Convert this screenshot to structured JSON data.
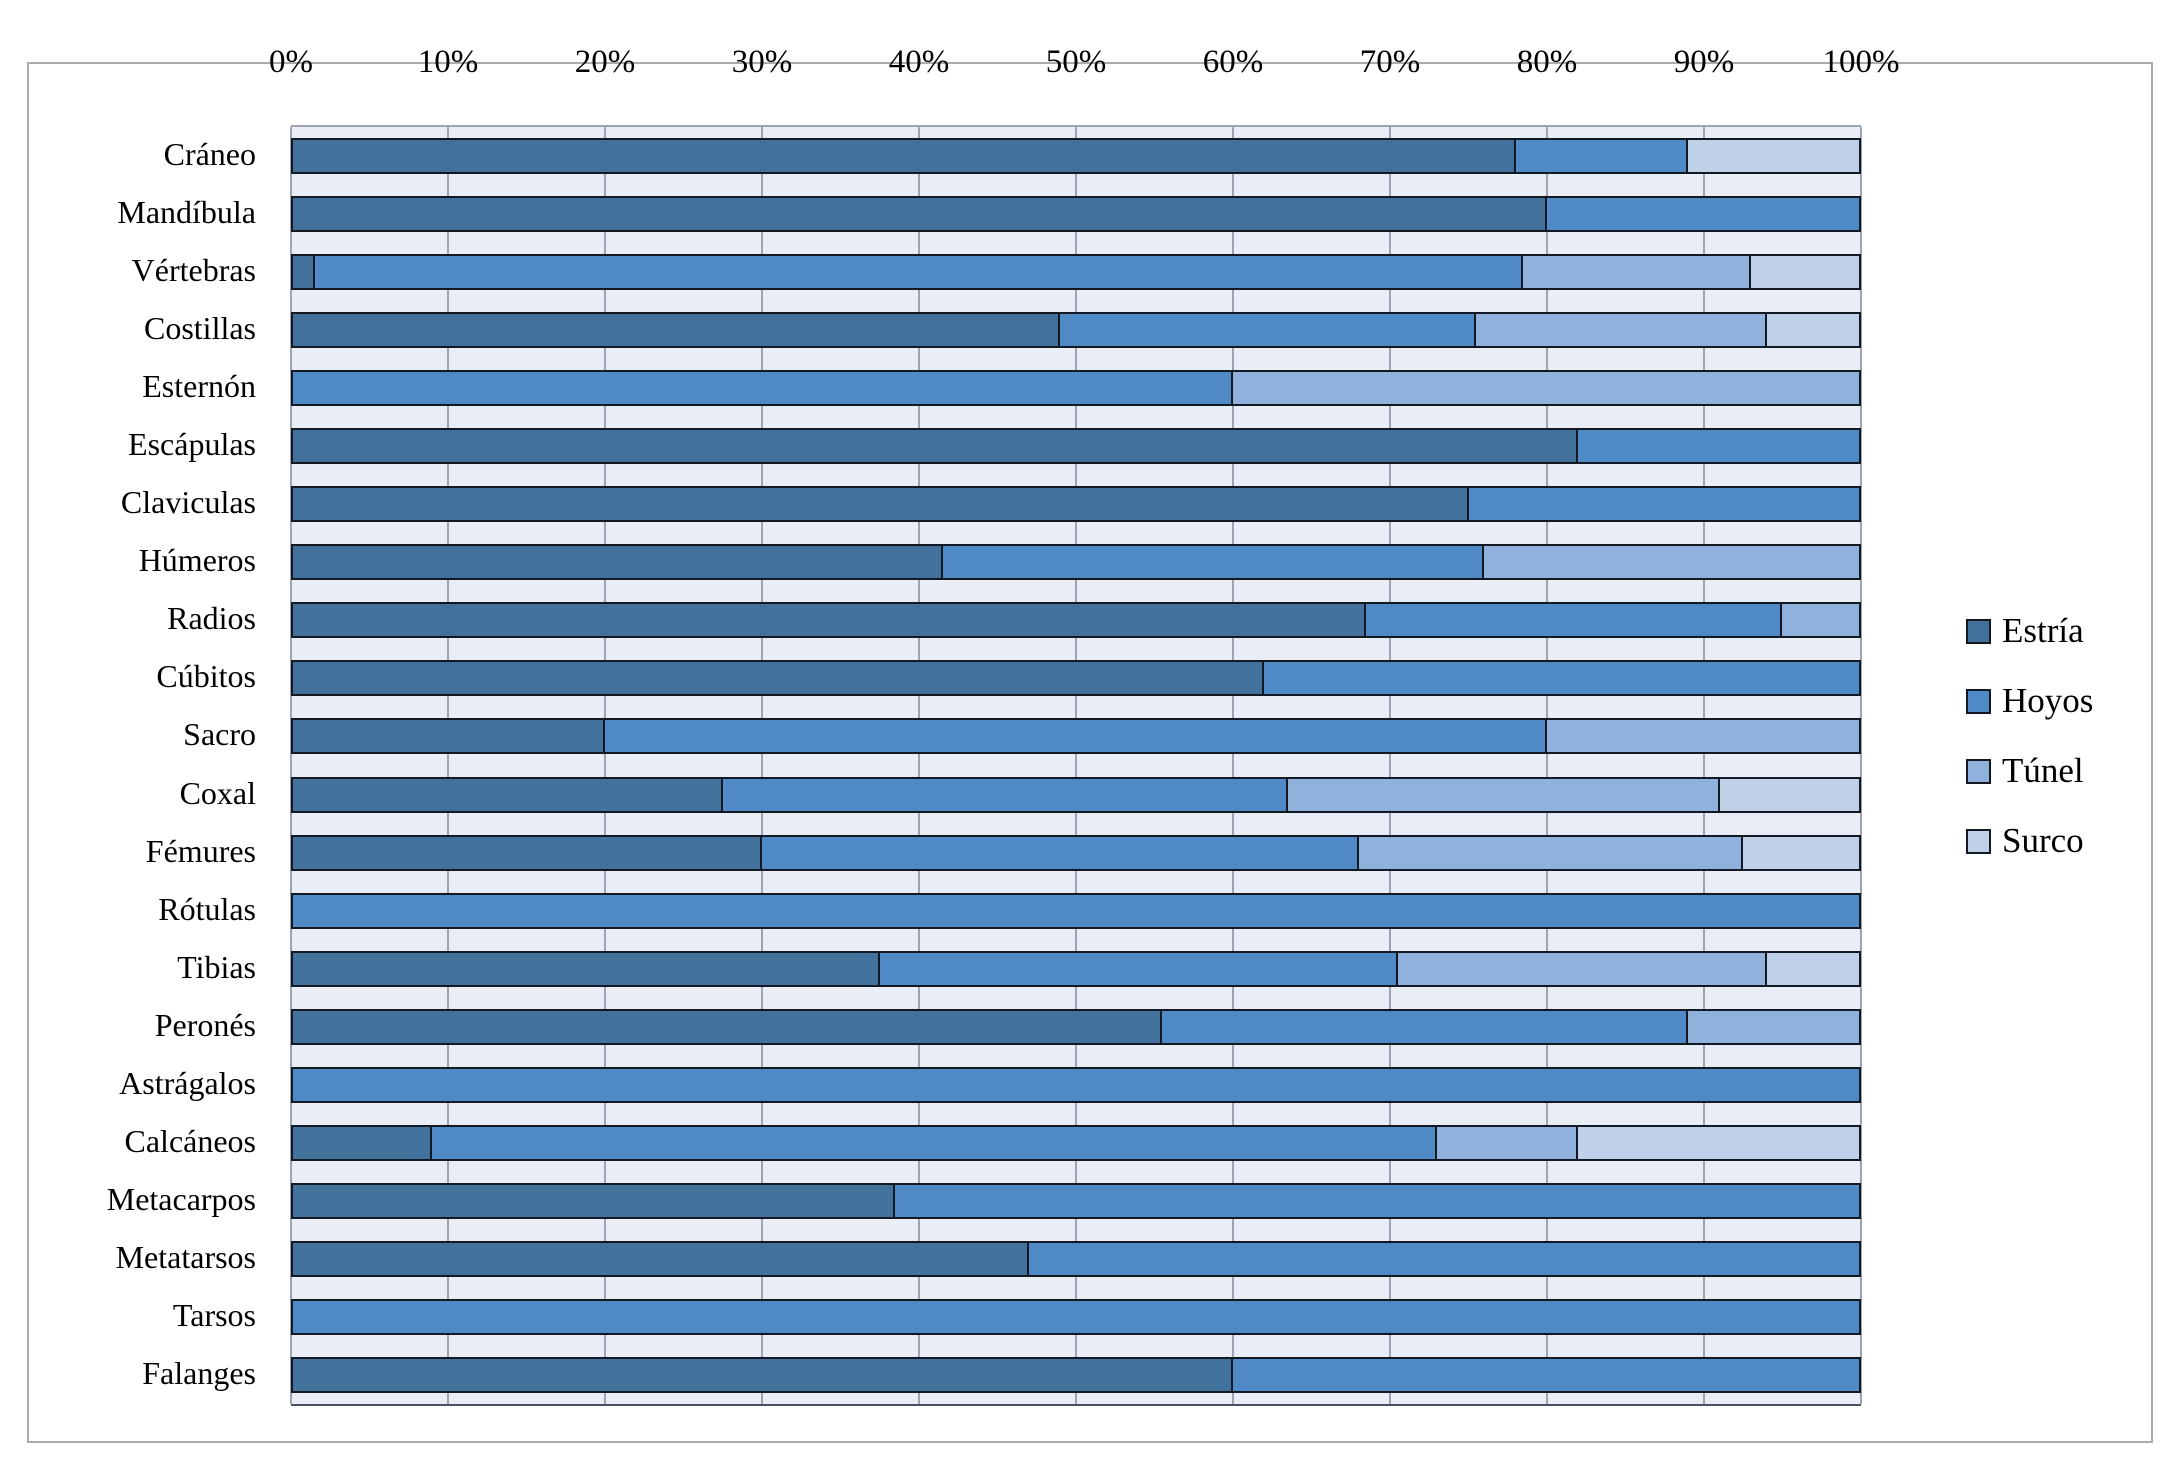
{
  "chart_data": {
    "type": "bar",
    "orientation": "horizontal",
    "stacked": true,
    "stacked_to": "100%",
    "grid": true,
    "legend_position": "right",
    "x_axis": {
      "min": 0,
      "max": 100,
      "tick_step": 10,
      "ticks": [
        "0%",
        "10%",
        "20%",
        "30%",
        "40%",
        "50%",
        "60%",
        "70%",
        "80%",
        "90%",
        "100%"
      ]
    },
    "categories": [
      "Cráneo",
      "Mandíbula",
      "Vértebras",
      "Costillas",
      "Esternón",
      "Escápulas",
      "Claviculas",
      "Húmeros",
      "Radios",
      "Cúbitos",
      "Sacro",
      "Coxal",
      "Fémures",
      "Rótulas",
      "Tibias",
      "Peronés",
      "Astrágalos",
      "Calcáneos",
      "Metacarpos",
      "Metatarsos",
      "Tarsos",
      "Falanges"
    ],
    "series": [
      {
        "name": "Estría",
        "color": "#42719C",
        "values": [
          78,
          80,
          1.5,
          49,
          0,
          82,
          75,
          41.5,
          68.5,
          62,
          20,
          27.5,
          30,
          0,
          37.5,
          55.5,
          0,
          9,
          38.5,
          47,
          0,
          60
        ]
      },
      {
        "name": "Hoyos",
        "color": "#4F89C6",
        "values": [
          11,
          20,
          77,
          26.5,
          60,
          18,
          25,
          34.5,
          26.5,
          38,
          60,
          36,
          38,
          100,
          33,
          33.5,
          100,
          64,
          61.5,
          53,
          100,
          40
        ]
      },
      {
        "name": "Túnel",
        "color": "#8FB1DC",
        "values": [
          0,
          0,
          14.5,
          18.5,
          40,
          0,
          0,
          24,
          5,
          0,
          20,
          27.5,
          24.5,
          0,
          23.5,
          11,
          0,
          9,
          0,
          0,
          0,
          0
        ]
      },
      {
        "name": "Surco",
        "color": "#BFD0E9",
        "values": [
          11,
          0,
          7,
          6,
          0,
          0,
          0,
          0,
          0,
          0,
          0,
          9,
          7.5,
          0,
          6,
          0,
          0,
          18,
          0,
          0,
          0,
          0
        ]
      }
    ],
    "colors": {
      "plot_background": "#E9EDF6",
      "gridline": "#9CA3B2",
      "bar_border": "#131922",
      "chart_border": "#ABABAB",
      "text": "#000000"
    }
  }
}
